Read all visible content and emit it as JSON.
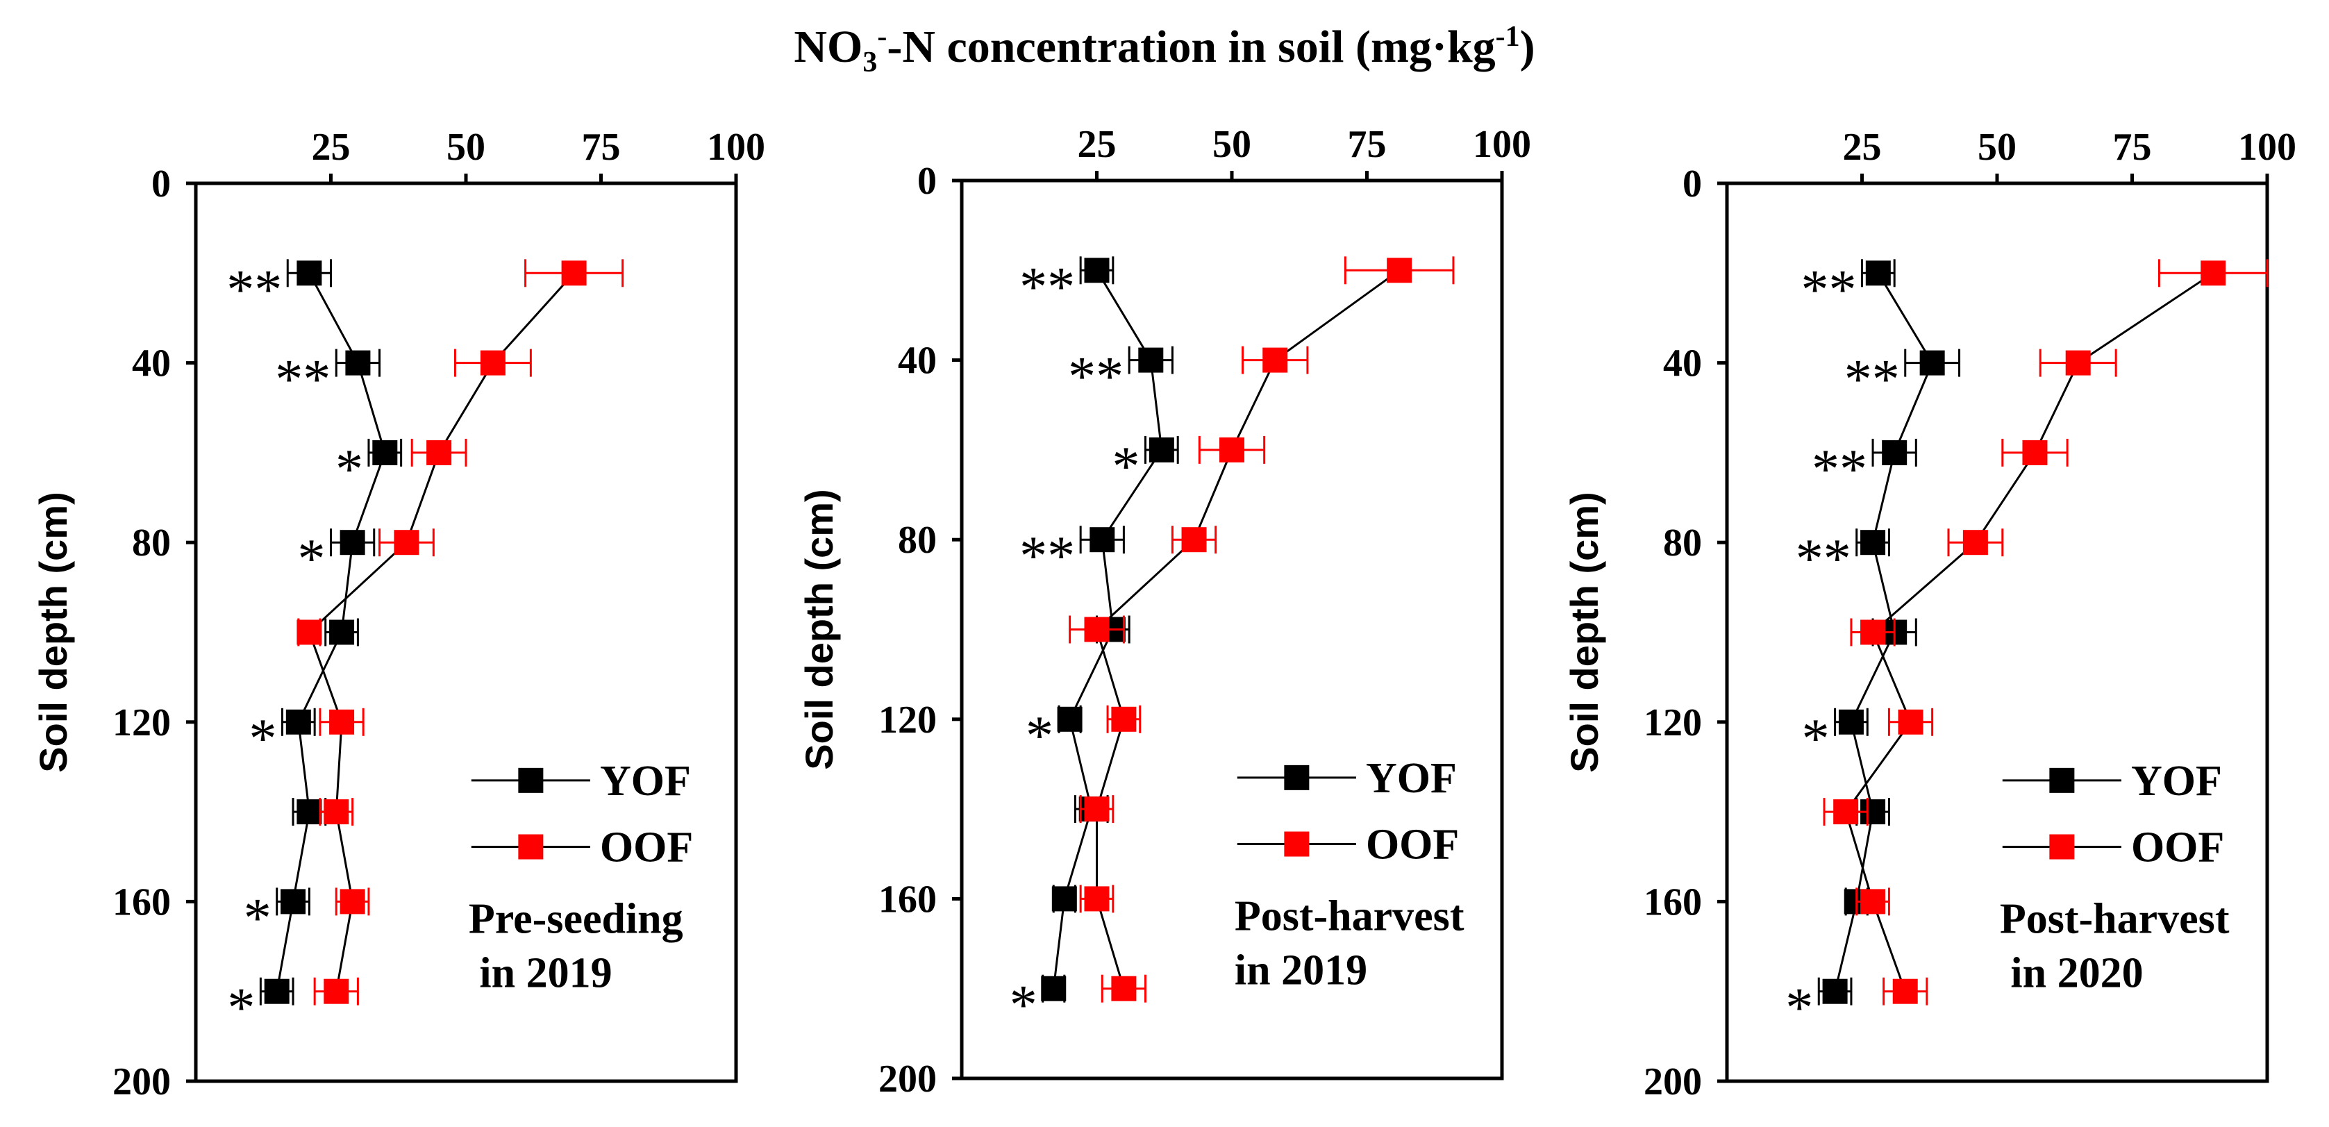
{
  "figure_title": {
    "prefix": "NO",
    "sub": "3",
    "sup1": "-",
    "middle": "-N concentration in soil (mg·kg",
    "sup2": "-1",
    "suffix": ")"
  },
  "chart_data": [
    {
      "type": "line",
      "annotation": [
        "Pre-seeding",
        " in 2019"
      ],
      "xlabel": "NO3–N concentration in soil (mg·kg-1)",
      "ylabel": "Soil depth (cm)",
      "xlim": [
        0,
        100
      ],
      "ylim": [
        0,
        200
      ],
      "xticks": [
        25,
        50,
        75,
        100
      ],
      "xtick_labels": [
        "25",
        "50",
        "75",
        "100"
      ],
      "yticks": [
        0,
        40,
        80,
        120,
        160,
        200
      ],
      "ytick_labels": [
        "0",
        "40",
        "80",
        "120",
        "160",
        "200"
      ],
      "depth": [
        20,
        40,
        60,
        80,
        100,
        120,
        140,
        160,
        180
      ],
      "series": [
        {
          "name": "YOF",
          "color": "#000000",
          "values": [
            21,
            30,
            35,
            29,
            27,
            19,
            21,
            18,
            15
          ],
          "errors": [
            4,
            4,
            3,
            4,
            3,
            3,
            3,
            3,
            3
          ]
        },
        {
          "name": "OOF",
          "color": "#ff0000",
          "values": [
            70,
            55,
            45,
            39,
            21,
            27,
            26,
            29,
            26
          ],
          "errors": [
            9,
            7,
            5,
            5,
            2,
            4,
            3,
            3,
            4
          ]
        }
      ],
      "significance": [
        "**",
        "**",
        "*",
        "*",
        "",
        "*",
        "",
        "*",
        "*"
      ],
      "legend_position": "lower-right"
    },
    {
      "type": "line",
      "annotation": [
        "Post-harvest",
        "in 2019"
      ],
      "xlabel": "NO3–N concentration in soil (mg·kg-1)",
      "ylabel": "Soil depth (cm)",
      "xlim": [
        0,
        100
      ],
      "ylim": [
        0,
        200
      ],
      "xticks": [
        25,
        50,
        75,
        100
      ],
      "xtick_labels": [
        "25",
        "50",
        "75",
        "100"
      ],
      "yticks": [
        0,
        40,
        80,
        120,
        160,
        200
      ],
      "ytick_labels": [
        "0",
        "40",
        "80",
        "120",
        "160",
        "200"
      ],
      "depth": [
        20,
        40,
        60,
        80,
        100,
        120,
        140,
        160,
        180
      ],
      "series": [
        {
          "name": "YOF",
          "color": "#000000",
          "values": [
            25,
            35,
            37,
            26,
            28,
            20,
            24,
            19,
            17
          ],
          "errors": [
            3,
            4,
            3,
            4,
            3,
            2,
            3,
            2,
            2
          ]
        },
        {
          "name": "OOF",
          "color": "#ff0000",
          "values": [
            81,
            58,
            50,
            43,
            25,
            30,
            25,
            25,
            30
          ],
          "errors": [
            10,
            6,
            6,
            4,
            5,
            3,
            3,
            3,
            4
          ]
        }
      ],
      "significance": [
        "**",
        "**",
        "*",
        "**",
        "",
        "*",
        "",
        "",
        "*"
      ],
      "legend_position": "lower-right"
    },
    {
      "type": "line",
      "annotation": [
        "Post-harvest",
        " in 2020"
      ],
      "xlabel": "NO3–N concentration in soil (mg·kg-1)",
      "ylabel": "Soil depth (cm)",
      "xlim": [
        0,
        100
      ],
      "ylim": [
        0,
        200
      ],
      "xticks": [
        25,
        50,
        75,
        100
      ],
      "xtick_labels": [
        "25",
        "50",
        "75",
        "100"
      ],
      "yticks": [
        0,
        40,
        80,
        120,
        160,
        200
      ],
      "ytick_labels": [
        "0",
        "40",
        "80",
        "120",
        "160",
        "200"
      ],
      "depth": [
        20,
        40,
        60,
        80,
        100,
        120,
        140,
        160,
        180
      ],
      "series": [
        {
          "name": "YOF",
          "color": "#000000",
          "values": [
            28,
            38,
            31,
            27,
            31,
            23,
            27,
            24,
            20
          ],
          "errors": [
            3,
            5,
            4,
            3,
            4,
            3,
            3,
            2,
            3
          ]
        },
        {
          "name": "OOF",
          "color": "#ff0000",
          "values": [
            90,
            65,
            57,
            46,
            27,
            34,
            22,
            27,
            33
          ],
          "errors": [
            10,
            7,
            6,
            5,
            4,
            4,
            4,
            3,
            4
          ]
        }
      ],
      "significance": [
        "**",
        "**",
        "**",
        "**",
        "",
        "*",
        "",
        "",
        "*"
      ],
      "legend_position": "lower-right"
    }
  ]
}
